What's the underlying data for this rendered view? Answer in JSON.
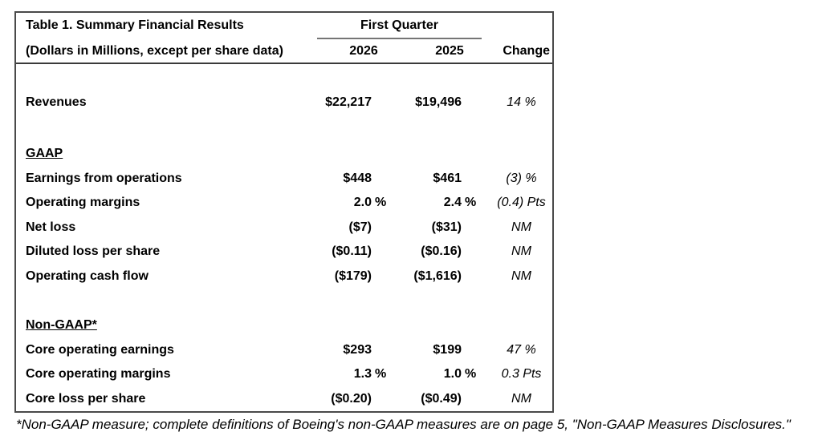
{
  "table": {
    "title": "Table 1. Summary Financial Results",
    "subtitle": "(Dollars in Millions, except per share data)",
    "col_group_label": "First Quarter",
    "columns": [
      "2026",
      "2025",
      "Change"
    ],
    "rows": [
      {
        "type": "data",
        "label": "Revenues",
        "y2026": "$22,217",
        "y2026_unit": "",
        "y2025": "$19,496",
        "y2025_unit": "",
        "change": "14 %"
      },
      {
        "type": "section",
        "label": "GAAP"
      },
      {
        "type": "data",
        "label": "Earnings from operations",
        "y2026": "$448",
        "y2026_unit": "",
        "y2025": "$461",
        "y2025_unit": "",
        "change": "(3) %"
      },
      {
        "type": "data",
        "label": "Operating margins",
        "y2026": "2.0",
        "y2026_unit": "%",
        "y2025": "2.4",
        "y2025_unit": "%",
        "change": "(0.4) Pts"
      },
      {
        "type": "data",
        "label": "Net loss",
        "y2026": "($7)",
        "y2026_unit": "",
        "y2025": "($31)",
        "y2025_unit": "",
        "change": "NM"
      },
      {
        "type": "data",
        "label": "Diluted loss per share",
        "y2026": "($0.11)",
        "y2026_unit": "",
        "y2025": "($0.16)",
        "y2025_unit": "",
        "change": "NM"
      },
      {
        "type": "data",
        "label": "Operating cash flow",
        "y2026": "($179)",
        "y2026_unit": "",
        "y2025": "($1,616)",
        "y2025_unit": "",
        "change": "NM"
      },
      {
        "type": "section",
        "label": "Non-GAAP*"
      },
      {
        "type": "data",
        "label": "Core operating earnings",
        "y2026": "$293",
        "y2026_unit": "",
        "y2025": "$199",
        "y2025_unit": "",
        "change": "47 %"
      },
      {
        "type": "data",
        "label": "Core operating margins",
        "y2026": "1.3",
        "y2026_unit": "%",
        "y2025": "1.0",
        "y2025_unit": "%",
        "change": "0.3 Pts"
      },
      {
        "type": "data",
        "label": "Core loss per share",
        "y2026": "($0.20)",
        "y2026_unit": "",
        "y2025": "($0.49)",
        "y2025_unit": "",
        "change": "NM"
      }
    ]
  },
  "footnote": "*Non-GAAP measure; complete definitions of Boeing's non-GAAP measures are on page 5, \"Non-GAAP Measures Disclosures.\"",
  "colors": {
    "background": "#ffffff",
    "text": "#000000",
    "table_border": "#4a4a4a",
    "header_rule": "#3a3a3a",
    "quarter_underline": "#757575"
  }
}
